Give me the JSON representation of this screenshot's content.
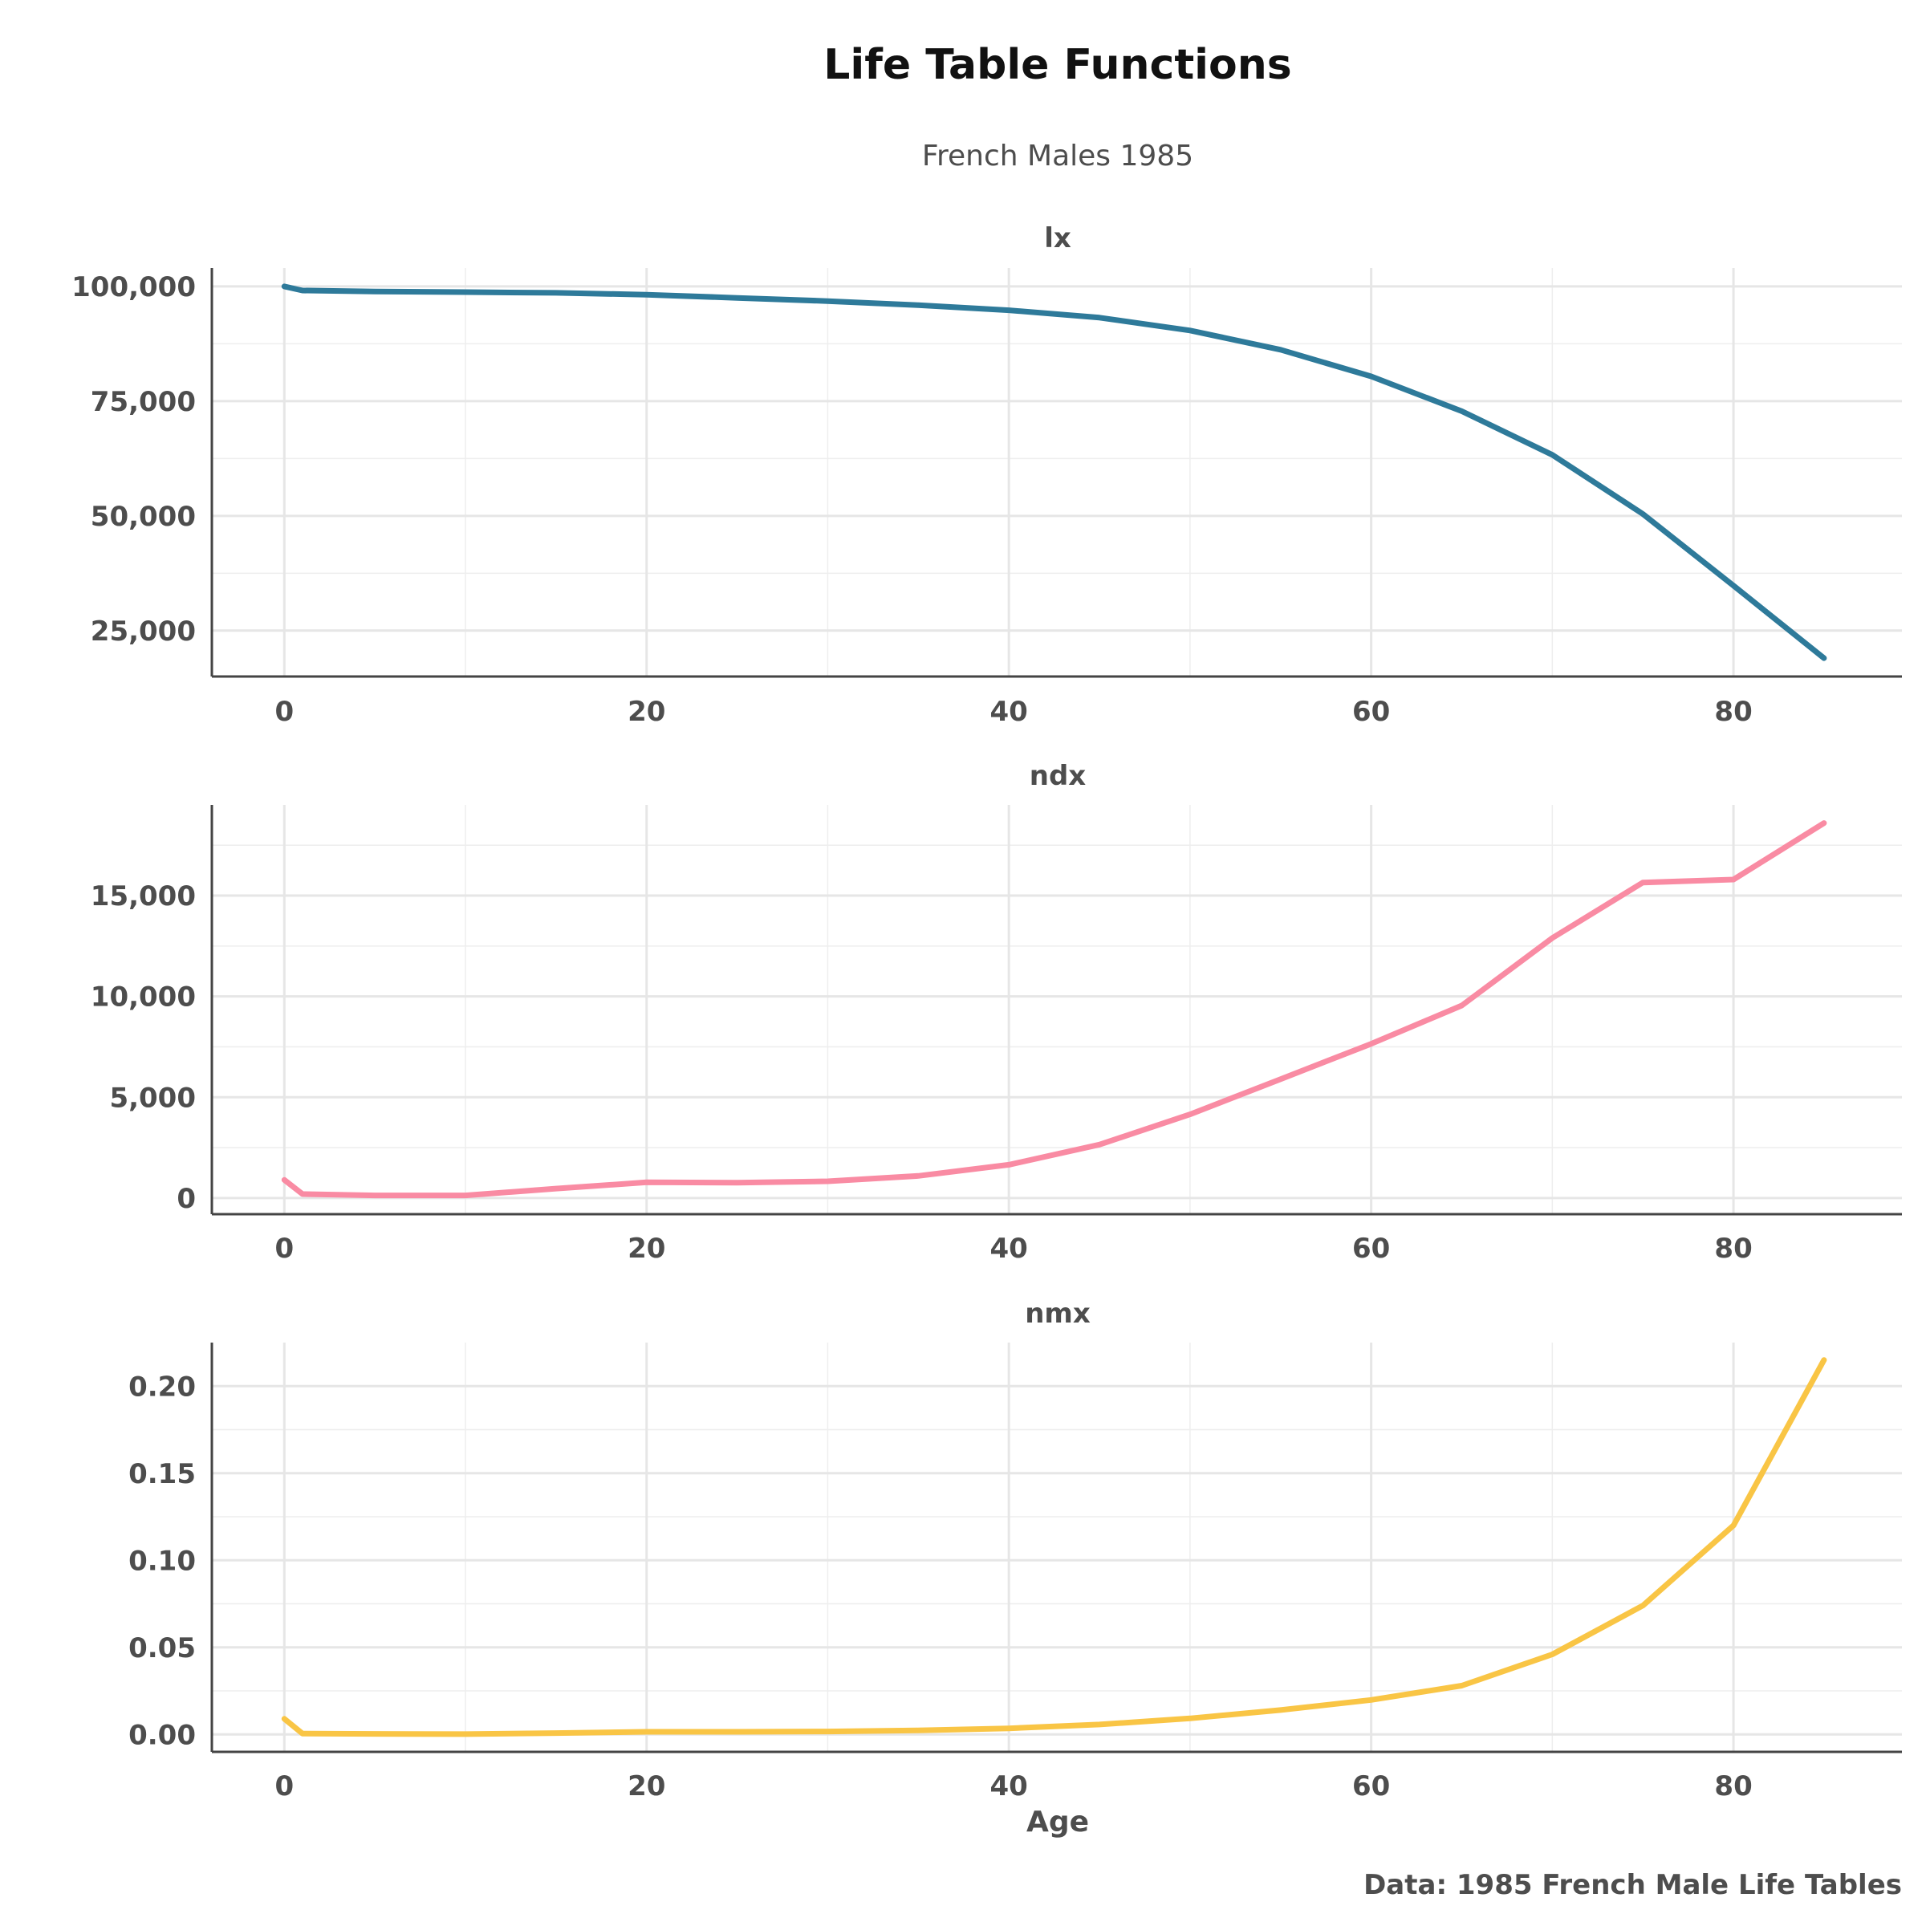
{
  "title": "Life Table Functions",
  "subtitle": "French Males 1985",
  "xlabel": "Age",
  "caption": "Data: 1985 French Male Life Tables",
  "chart_data": [
    {
      "type": "line",
      "facet": "lx",
      "color": "#2E7A9A",
      "x": [
        0,
        1,
        5,
        10,
        15,
        20,
        25,
        30,
        35,
        40,
        45,
        50,
        55,
        60,
        65,
        70,
        75,
        80,
        85
      ],
      "y": [
        100000,
        99100,
        98900,
        98750,
        98600,
        98200,
        97500,
        96800,
        95900,
        94800,
        93200,
        90400,
        86200,
        80400,
        72800,
        63300,
        50400,
        34800,
        19000
      ],
      "xlim": [
        -4,
        89.3
      ],
      "ylim": [
        15000,
        104000
      ],
      "xticks": [
        "0",
        "20",
        "40",
        "60",
        "80"
      ],
      "yticks": [
        "25,000",
        "50,000",
        "75,000",
        "100,000"
      ],
      "yticks_values": [
        25000,
        50000,
        75000,
        100000
      ],
      "grid": true
    },
    {
      "type": "line",
      "facet": "ndx",
      "color": "#F98BA3",
      "x": [
        0,
        1,
        5,
        10,
        15,
        20,
        25,
        30,
        35,
        40,
        45,
        50,
        55,
        60,
        65,
        70,
        75,
        80,
        85
      ],
      "y": [
        900,
        200,
        130,
        130,
        470,
        780,
        760,
        830,
        1100,
        1650,
        2650,
        4150,
        5900,
        7650,
        9550,
        12900,
        15650,
        15800,
        18600
      ],
      "xlim": [
        -4,
        89.3
      ],
      "ylim": [
        -800,
        19500
      ],
      "xticks": [
        "0",
        "20",
        "40",
        "60",
        "80"
      ],
      "yticks": [
        "0",
        "5,000",
        "10,000",
        "15,000"
      ],
      "yticks_values": [
        0,
        5000,
        10000,
        15000
      ],
      "grid": true
    },
    {
      "type": "line",
      "facet": "nmx",
      "color": "#F9C545",
      "x": [
        0,
        1,
        5,
        10,
        15,
        20,
        25,
        30,
        35,
        40,
        45,
        50,
        55,
        60,
        65,
        70,
        75,
        80,
        85
      ],
      "y": [
        0.009,
        0.0005,
        0.0003,
        0.0002,
        0.0008,
        0.0015,
        0.0015,
        0.0017,
        0.0023,
        0.0035,
        0.0057,
        0.0092,
        0.014,
        0.0198,
        0.028,
        0.046,
        0.074,
        0.12,
        0.215
      ],
      "xlim": [
        -4,
        89.3
      ],
      "ylim": [
        -0.01,
        0.225
      ],
      "xticks": [
        "0",
        "20",
        "40",
        "60",
        "80"
      ],
      "yticks": [
        "0.00",
        "0.05",
        "0.10",
        "0.15",
        "0.20"
      ],
      "yticks_values": [
        0,
        0.05,
        0.1,
        0.15,
        0.2
      ],
      "grid": true
    }
  ]
}
